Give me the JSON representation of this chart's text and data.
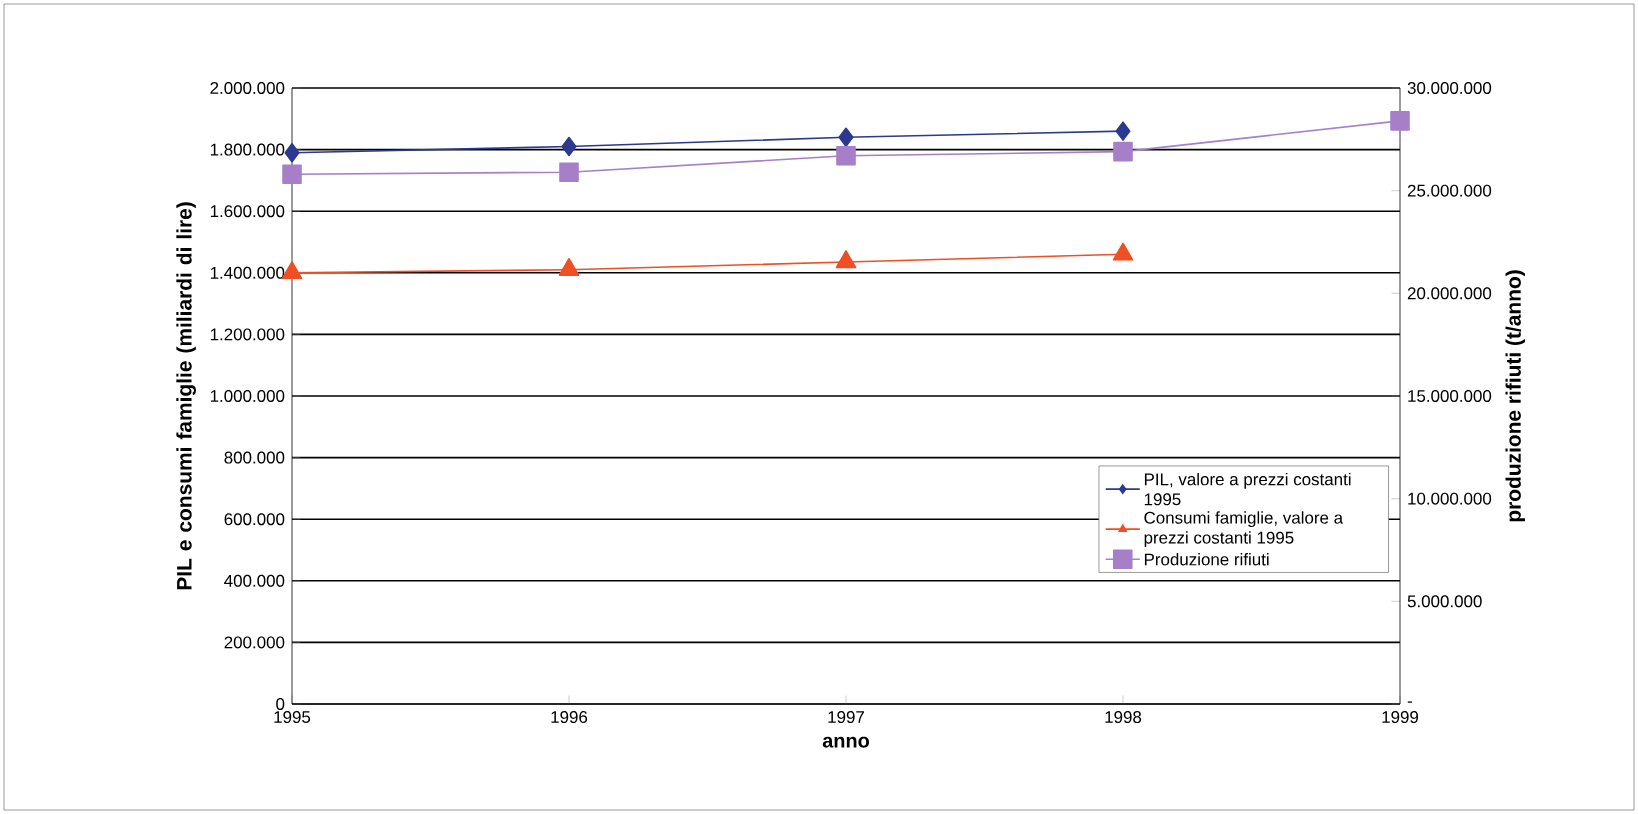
{
  "chart_data": {
    "type": "line",
    "xlabel": "anno",
    "ylabel": "PIL e consumi famiglie (miliardi di lire)",
    "y2label": "produzione rifiuti (t/anno)",
    "x": [
      1995,
      1996,
      1997,
      1998,
      1999
    ],
    "xlim": [
      1995,
      1999
    ],
    "xticks": [
      1995,
      1996,
      1997,
      1998,
      1999
    ],
    "ylim": [
      0,
      2000000
    ],
    "yticks": [
      0,
      {
        "value": 200000,
        "label": "200.000"
      },
      {
        "value": 400000,
        "label": "400.000"
      },
      {
        "value": 600000,
        "label": "600.000"
      },
      {
        "value": 800000,
        "label": "800.000"
      },
      {
        "value": 1000000,
        "label": "1.000.000"
      },
      {
        "value": 1200000,
        "label": "1.200.000"
      },
      {
        "value": 1400000,
        "label": "1.400.000"
      },
      {
        "value": 1600000,
        "label": "1.600.000"
      },
      {
        "value": 1800000,
        "label": "1.800.000"
      },
      {
        "value": 2000000,
        "label": "2.000.000"
      }
    ],
    "y2lim": [
      0,
      30000000
    ],
    "y2ticks": [
      {
        "value": 0,
        "label": "-"
      },
      {
        "value": 5000000,
        "label": "5.000.000"
      },
      {
        "value": 10000000,
        "label": "10.000.000"
      },
      {
        "value": 15000000,
        "label": "15.000.000"
      },
      {
        "value": 20000000,
        "label": "20.000.000"
      },
      {
        "value": 25000000,
        "label": "25.000.000"
      },
      {
        "value": 30000000,
        "label": "30.000.000"
      }
    ],
    "grid": "y",
    "legend": "right",
    "series": [
      {
        "name": "PIL, valore a prezzi costanti 1995",
        "color": "#2b3990",
        "marker": "diamond",
        "values": [
          1790000,
          1810000,
          1840000,
          1860000,
          null
        ]
      },
      {
        "name": "Consumi famiglie, valore a prezzi costanti 1995",
        "color": "#f04e23",
        "marker": "triangle",
        "values": [
          1400000,
          1410000,
          1435000,
          1460000,
          null
        ]
      },
      {
        "name": "Produzione rifiuti",
        "color": "#a77fc9",
        "marker": "square",
        "axis": "y2",
        "values": [
          25800000,
          25900000,
          26700000,
          26900000,
          28400000
        ]
      }
    ]
  }
}
